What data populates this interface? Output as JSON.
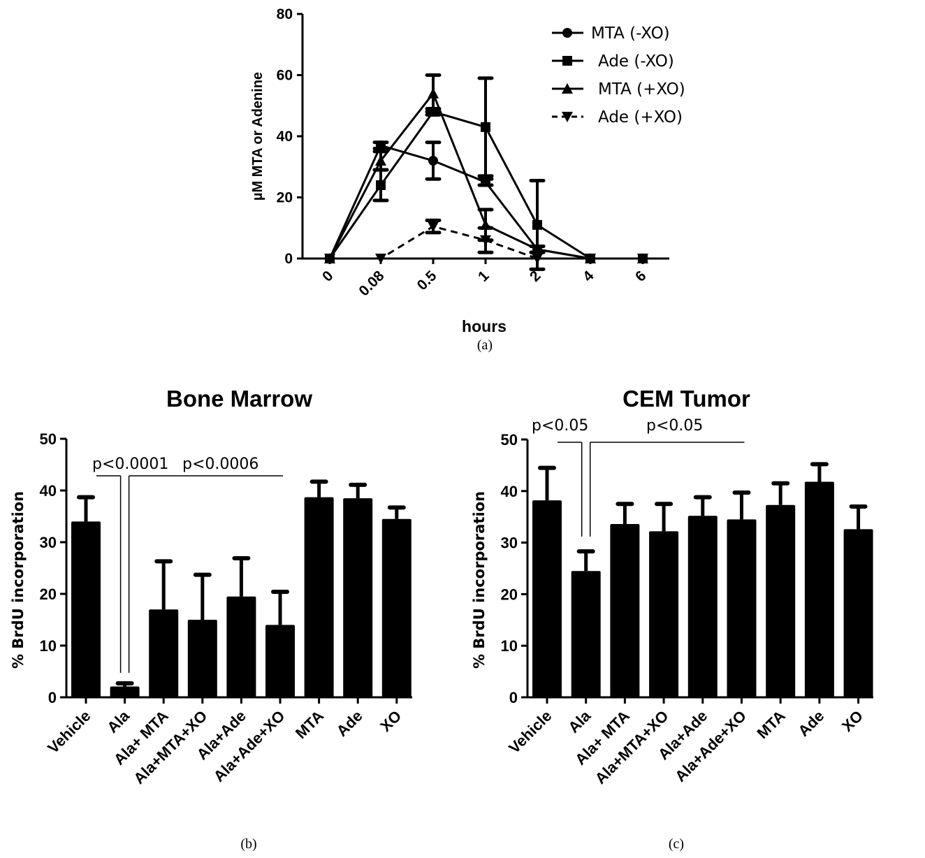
{
  "chart_data": [
    {
      "id": "a",
      "type": "line",
      "panel_label": "(a)",
      "title": "",
      "xlabel": "hours",
      "ylabel": "µM MTA or  Adenine",
      "categories": [
        "0",
        "0.08",
        "0.5",
        "1",
        "2",
        "4",
        "6"
      ],
      "ylim": [
        0,
        80
      ],
      "yticks": [
        0,
        20,
        40,
        60,
        80
      ],
      "grid": false,
      "legend_position": "top-right",
      "series": [
        {
          "name": "MTA (-XO)",
          "marker": "circle",
          "dashed": false,
          "values": [
            0,
            37,
            32,
            25,
            3,
            0,
            0
          ],
          "err": [
            0,
            1,
            6,
            1,
            1,
            0,
            0
          ]
        },
        {
          "name": "Ade (-XO)",
          "marker": "square",
          "dashed": false,
          "values": [
            0,
            24,
            48,
            43,
            11,
            0,
            0
          ],
          "err": [
            0,
            5,
            1,
            16,
            14.5,
            0,
            0
          ]
        },
        {
          "name": "MTA (+XO)",
          "marker": "triangle-up",
          "dashed": false,
          "values": [
            0,
            32,
            54,
            11,
            3,
            0,
            0
          ],
          "err": [
            0,
            3,
            6,
            5,
            1,
            0,
            0
          ]
        },
        {
          "name": "Ade (+XO)",
          "marker": "triangle-down",
          "dashed": true,
          "values": [
            0,
            0,
            10.5,
            6,
            0,
            0,
            0
          ],
          "err": [
            0,
            0,
            2,
            4,
            0,
            0,
            0
          ]
        }
      ]
    },
    {
      "id": "b",
      "type": "bar",
      "panel_label": "(b)",
      "title": "Bone Marrow",
      "xlabel": "",
      "ylabel": "% BrdU incorporation",
      "categories": [
        "Vehicle",
        "Ala",
        "Ala+ MTA",
        "Ala+MTA+XO",
        "Ala+Ade",
        "Ala+Ade+XO",
        "MTA",
        "Ade",
        "XO"
      ],
      "values": [
        34,
        2.1,
        17,
        15,
        19.5,
        14,
        38.7,
        38.5,
        34.5
      ],
      "err": [
        4.7,
        0.6,
        9.3,
        8.7,
        7.4,
        6.4,
        3,
        2.6,
        2.2
      ],
      "ylim": [
        0,
        50
      ],
      "yticks": [
        0,
        10,
        20,
        30,
        40,
        50
      ],
      "grid": false,
      "annotations": [
        {
          "text": "p<0.0001",
          "from": "Vehicle",
          "to": "Ala"
        },
        {
          "text": "p<0.0006",
          "from": "Ala",
          "to": "Ala+Ade+XO"
        }
      ]
    },
    {
      "id": "c",
      "type": "bar",
      "panel_label": "(c)",
      "title": "CEM Tumor",
      "xlabel": "",
      "ylabel": "% BrdU incorporation",
      "categories": [
        "Vehicle",
        "Ala",
        "Ala+ MTA",
        "Ala+MTA+XO",
        "Ala+Ade",
        "Ala+Ade+XO",
        "MTA",
        "Ade",
        "XO"
      ],
      "values": [
        38.2,
        24.5,
        33.6,
        32.2,
        35.2,
        34.5,
        37.3,
        41.8,
        32.6
      ],
      "err": [
        6.3,
        3.8,
        3.9,
        5.3,
        3.6,
        5.2,
        4.2,
        3.4,
        4.4
      ],
      "ylim": [
        0,
        50
      ],
      "yticks": [
        0,
        10,
        20,
        30,
        40,
        50
      ],
      "grid": false,
      "annotations": [
        {
          "text": "p<0.05",
          "from": "Vehicle",
          "to": "Ala"
        },
        {
          "text": "p<0.05",
          "from": "Ala",
          "to": "Ala+Ade+XO"
        }
      ]
    }
  ]
}
